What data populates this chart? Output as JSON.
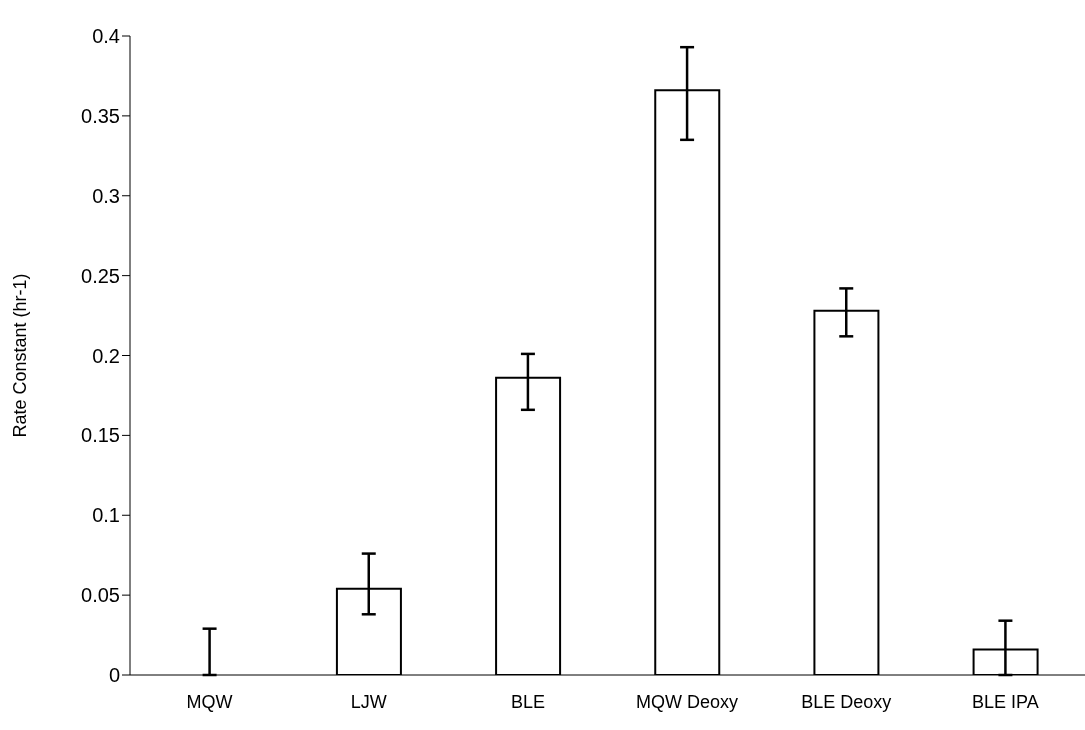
{
  "chart_data": {
    "type": "bar",
    "ylabel": "Rate Constant (hr-1)",
    "categories": [
      "MQW",
      "LJW",
      "BLE",
      "MQW Deoxy",
      "BLE Deoxy",
      "BLE IPA"
    ],
    "values": [
      0,
      0.054,
      0.186,
      0.366,
      0.228,
      0.016
    ],
    "errors": [
      [
        0,
        0.029
      ],
      [
        0.038,
        0.076
      ],
      [
        0.166,
        0.201
      ],
      [
        0.335,
        0.393
      ],
      [
        0.212,
        0.242
      ],
      [
        0,
        0.034
      ]
    ],
    "color": "#ffffff",
    "ylim": [
      0,
      0.4
    ],
    "yticks": [
      0,
      0.05,
      0.1,
      0.15,
      0.2,
      0.25,
      0.3,
      0.35,
      0.4
    ],
    "grid": false,
    "legend": false
  }
}
